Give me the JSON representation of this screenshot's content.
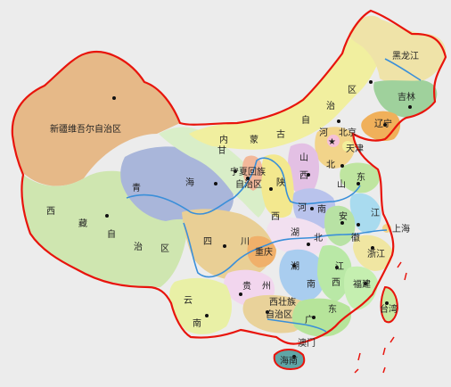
{
  "colors": {
    "background": "#ececec",
    "border": "#e8140c",
    "river": "#3a8fd9",
    "xinjiang": "#e6b988",
    "xizang": "#cfe6b0",
    "qinghai": "#a9b6da",
    "gansu": "#d9eec8",
    "neimenggu": "#f1ef9f",
    "heilongjiang": "#efe3a8",
    "jilin": "#9fd19c",
    "liaoning": "#f0b05a",
    "sichuan": "#e9cf95",
    "yunnan": "#e9f0a6",
    "guangxi": "#e9d29a",
    "guangdong": "#b6e49a",
    "hunan": "#a9cdef",
    "fujian": "#c5efb0",
    "taiwan": "#c9e9a0",
    "hainan": "#5fa6a6",
    "capital_star": "#e8140c"
  },
  "labels": {
    "xinjiang": "新疆维吾尔自治区",
    "xizang": [
      "西",
      "藏",
      "自",
      "治",
      "区"
    ],
    "qinghai": [
      "青",
      "海"
    ],
    "gansu": "甘",
    "neimenggu": [
      "内",
      "蒙",
      "古",
      "自",
      "治",
      "区"
    ],
    "ningxia": [
      "宁夏回族",
      "自治区"
    ],
    "heilongjiang": "黑龙江",
    "jilin": "吉林",
    "liaoning": "辽宁",
    "beijing": "北京",
    "tianjin": "天津",
    "hebei": [
      "河",
      "北"
    ],
    "shanxi": [
      "山",
      "西"
    ],
    "shaanxi": [
      "陕",
      "西"
    ],
    "shandong": [
      "山",
      "东"
    ],
    "henan": [
      "河",
      "南"
    ],
    "jiangsu": "江",
    "shanghai": "上海",
    "anhui": [
      "安",
      "徽"
    ],
    "zhejiang": "浙江",
    "hubei": [
      "湖",
      "北"
    ],
    "sichuan": [
      "四",
      "川"
    ],
    "chongqing": "重庆",
    "hunan": [
      "湖",
      "南"
    ],
    "jiangxi": [
      "江",
      "西"
    ],
    "fujian": "福建",
    "guizhou": [
      "贵",
      "州"
    ],
    "yunnan": [
      "云",
      "南"
    ],
    "guangxi": [
      "西壮族",
      "自治区"
    ],
    "guangdong": [
      "广",
      "东"
    ],
    "macau": "澳门",
    "hainan": "海南",
    "taiwan": "台湾",
    "capital_mark": "★"
  }
}
